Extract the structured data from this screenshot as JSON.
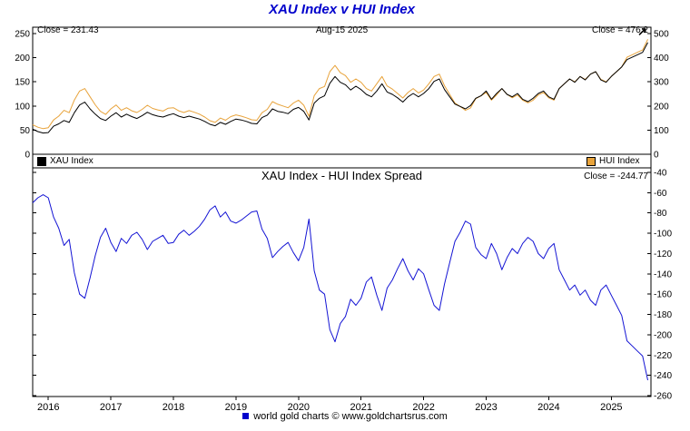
{
  "page": {
    "title_color": "#0000cc",
    "accent_blue": "#0000cc",
    "trend_arrow_glyph": "↗",
    "footer": "world gold charts © www.goldchartsrus.com"
  },
  "chart_data": [
    {
      "type": "line",
      "title": "XAU Index v HUI Index",
      "date_label": "Aug-15  2025",
      "grid": false,
      "legend_position": "bottom-inside",
      "x_unit": "years (monthly samples)",
      "x_start_year": 2015.75,
      "x_step_years": 0.083333,
      "x_ticks": [
        2016,
        2017,
        2018,
        2019,
        2020,
        2021,
        2022,
        2023,
        2024,
        2025
      ],
      "left_axis": {
        "label_for": "XAU Index",
        "range": [
          0,
          250
        ],
        "ticks": [
          0,
          50,
          100,
          150,
          200,
          250
        ]
      },
      "right_axis": {
        "label_for": "HUI Index",
        "range": [
          0,
          500
        ],
        "ticks": [
          0,
          100,
          200,
          300,
          400,
          500
        ]
      },
      "series": [
        {
          "name": "XAU Index",
          "color": "#000000",
          "axis": "left",
          "close": 231.43,
          "close_label": "Close = 231.43",
          "values": [
            52,
            47,
            44,
            45,
            58,
            63,
            70,
            66,
            86,
            102,
            108,
            94,
            83,
            74,
            70,
            79,
            86,
            77,
            83,
            78,
            74,
            80,
            87,
            82,
            79,
            77,
            81,
            84,
            79,
            76,
            79,
            76,
            73,
            68,
            62,
            59,
            66,
            62,
            68,
            73,
            71,
            68,
            64,
            63,
            76,
            81,
            94,
            89,
            87,
            84,
            93,
            97,
            89,
            71,
            106,
            116,
            121,
            147,
            161,
            149,
            144,
            133,
            141,
            134,
            124,
            119,
            131,
            146,
            129,
            124,
            117,
            108,
            119,
            126,
            119,
            126,
            136,
            151,
            156,
            134,
            119,
            104,
            99,
            94,
            101,
            116,
            121,
            131,
            114,
            126,
            136,
            124,
            119,
            126,
            114,
            109,
            116,
            126,
            131,
            119,
            114,
            136,
            146,
            156,
            149,
            161,
            154,
            166,
            171,
            154,
            149,
            161,
            171,
            181,
            196,
            201,
            206,
            211,
            231.43
          ]
        },
        {
          "name": "HUI Index",
          "color": "#e8a33b",
          "axis": "right",
          "close": 476.2,
          "close_label": "Close = 476.2",
          "values": [
            122,
            112,
            106,
            110,
            142,
            158,
            182,
            172,
            225,
            262,
            272,
            238,
            205,
            178,
            165,
            188,
            204,
            182,
            193,
            180,
            173,
            186,
            203,
            190,
            184,
            179,
            191,
            193,
            180,
            173,
            181,
            174,
            166,
            154,
            139,
            132,
            150,
            141,
            156,
            163,
            158,
            151,
            143,
            141,
            172,
            186,
            218,
            207,
            200,
            193,
            212,
            224,
            203,
            157,
            243,
            272,
            281,
            342,
            368,
            338,
            326,
            298,
            312,
            298,
            272,
            262,
            292,
            322,
            283,
            270,
            252,
            233,
            256,
            272,
            254,
            266,
            292,
            322,
            332,
            284,
            248,
            212,
            198,
            182,
            192,
            230,
            242,
            256,
            224,
            246,
            272,
            248,
            234,
            246,
            224,
            213,
            224,
            246,
            256,
            234,
            224,
            272,
            292,
            312,
            300,
            322,
            310,
            332,
            342,
            310,
            300,
            322,
            342,
            362,
            402,
            412,
            422,
            432,
            476.2
          ]
        }
      ]
    },
    {
      "type": "line",
      "title": "XAU Index  -  HUI Index Spread",
      "close": -244.77,
      "close_label": "Close = -244.77",
      "derived": "spread = XAU Index values minus HUI Index values (same monthly x samples as chart 0)",
      "right_axis": {
        "range": [
          -260,
          -40
        ],
        "ticks": [
          -40,
          -60,
          -80,
          -100,
          -120,
          -140,
          -160,
          -180,
          -200,
          -220,
          -240,
          -260
        ]
      },
      "series": [
        {
          "name": "XAU-HUI Spread",
          "color": "#1414d4",
          "derived_from": "chart_data[0]"
        }
      ]
    }
  ]
}
